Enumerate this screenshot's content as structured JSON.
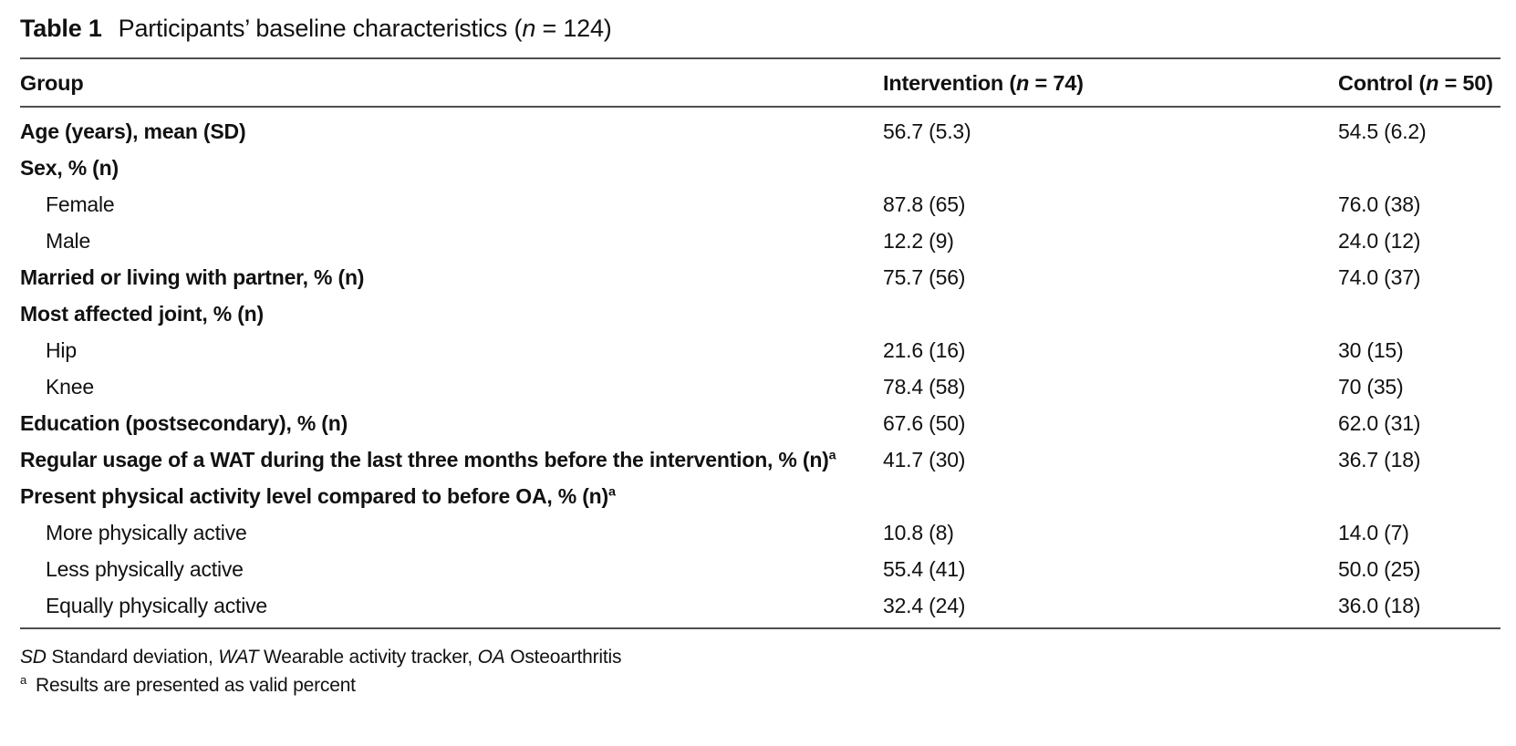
{
  "caption": {
    "label": "Table 1",
    "text_pre": "Participants’ baseline characteristics (",
    "n": "n",
    "text_post": " = 124)"
  },
  "table": {
    "columns": [
      {
        "label": "Group"
      },
      {
        "pre": "Intervention (",
        "n": "n",
        "post": " = 74)"
      },
      {
        "pre": "Control (",
        "n": "n",
        "post": " = 50)"
      }
    ],
    "rows": [
      {
        "label": "Age (years), mean (SD)",
        "style": "bold",
        "sup": "",
        "intervention": "56.7 (5.3)",
        "control": "54.5 (6.2)"
      },
      {
        "label": "Sex, % (n)",
        "style": "bold",
        "sup": "",
        "intervention": "",
        "control": ""
      },
      {
        "label": "Female",
        "style": "indent",
        "sup": "",
        "intervention": "87.8 (65)",
        "control": "76.0 (38)"
      },
      {
        "label": "Male",
        "style": "indent",
        "sup": "",
        "intervention": "12.2 (9)",
        "control": "24.0 (12)"
      },
      {
        "label": "Married or living with partner, % (n)",
        "style": "bold",
        "sup": "",
        "intervention": "75.7 (56)",
        "control": "74.0 (37)"
      },
      {
        "label": "Most affected joint, % (n)",
        "style": "bold",
        "sup": "",
        "intervention": "",
        "control": ""
      },
      {
        "label": "Hip",
        "style": "indent",
        "sup": "",
        "intervention": "21.6 (16)",
        "control": "30 (15)"
      },
      {
        "label": "Knee",
        "style": "indent",
        "sup": "",
        "intervention": "78.4 (58)",
        "control": "70 (35)"
      },
      {
        "label": "Education (postsecondary), % (n)",
        "style": "bold",
        "sup": "",
        "intervention": "67.6 (50)",
        "control": "62.0 (31)"
      },
      {
        "label": "Regular usage of a WAT during the last three months before the intervention, % (n)",
        "style": "bold",
        "sup": "a",
        "intervention": "41.7 (30)",
        "control": "36.7 (18)"
      },
      {
        "label": "Present physical activity level compared to before OA, % (n)",
        "style": "bold",
        "sup": "a",
        "intervention": "",
        "control": ""
      },
      {
        "label": "More physically active",
        "style": "indent",
        "sup": "",
        "intervention": "10.8 (8)",
        "control": "14.0 (7)"
      },
      {
        "label": "Less physically active",
        "style": "indent",
        "sup": "",
        "intervention": "55.4 (41)",
        "control": "50.0 (25)"
      },
      {
        "label": "Equally physically active",
        "style": "indent",
        "sup": "",
        "intervention": "32.4 (24)",
        "control": "36.0 (18)"
      }
    ]
  },
  "footnotes": {
    "abbreviations": [
      {
        "text": "SD",
        "italic": true
      },
      {
        "text": " Standard deviation, ",
        "italic": false
      },
      {
        "text": "WAT",
        "italic": true
      },
      {
        "text": " Wearable activity tracker, ",
        "italic": false
      },
      {
        "text": "OA",
        "italic": true
      },
      {
        "text": " Osteoarthritis",
        "italic": false
      }
    ],
    "note_a": {
      "marker": "a",
      "text": "Results are presented as valid percent"
    }
  },
  "colors": {
    "text": "#111111",
    "rule": "#4f4f4f",
    "background": "#ffffff"
  }
}
